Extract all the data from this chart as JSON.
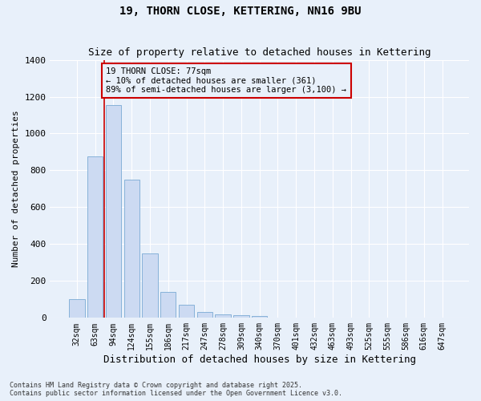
{
  "title_line1": "19, THORN CLOSE, KETTERING, NN16 9BU",
  "title_line2": "Size of property relative to detached houses in Kettering",
  "xlabel": "Distribution of detached houses by size in Kettering",
  "ylabel": "Number of detached properties",
  "categories": [
    "32sqm",
    "63sqm",
    "94sqm",
    "124sqm",
    "155sqm",
    "186sqm",
    "217sqm",
    "247sqm",
    "278sqm",
    "309sqm",
    "340sqm",
    "370sqm",
    "401sqm",
    "432sqm",
    "463sqm",
    "493sqm",
    "525sqm",
    "555sqm",
    "586sqm",
    "616sqm",
    "647sqm"
  ],
  "values": [
    100,
    875,
    1155,
    750,
    350,
    140,
    70,
    30,
    20,
    15,
    10,
    0,
    0,
    0,
    0,
    0,
    0,
    0,
    0,
    0,
    0
  ],
  "bar_color": "#ccdaf2",
  "bar_edge_color": "#7aaad4",
  "vline_x_index": 1.5,
  "vline_color": "#cc0000",
  "ylim": [
    0,
    1400
  ],
  "yticks": [
    0,
    200,
    400,
    600,
    800,
    1000,
    1200,
    1400
  ],
  "annotation_text": "19 THORN CLOSE: 77sqm\n← 10% of detached houses are smaller (361)\n89% of semi-detached houses are larger (3,100) →",
  "annotation_box_color": "#cc0000",
  "footnote": "Contains HM Land Registry data © Crown copyright and database right 2025.\nContains public sector information licensed under the Open Government Licence v3.0.",
  "bg_color": "#e8f0fa",
  "grid_color": "#ffffff",
  "title_fontsize": 10,
  "subtitle_fontsize": 9,
  "annotation_fontsize": 7.5,
  "ylabel_fontsize": 8,
  "xlabel_fontsize": 9,
  "tick_fontsize": 7,
  "ytick_fontsize": 8,
  "footnote_fontsize": 6
}
